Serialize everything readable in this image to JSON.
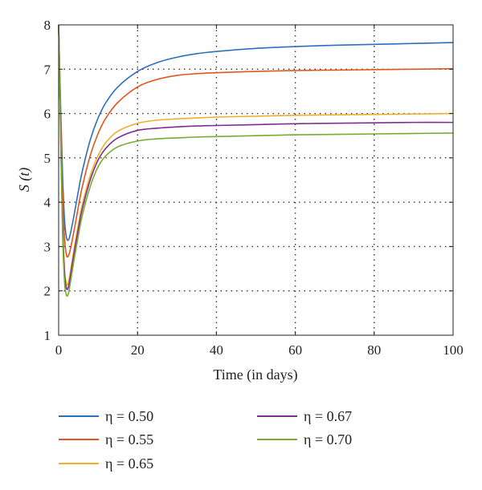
{
  "chart_data": {
    "type": "line",
    "xlabel": "Time (in days)",
    "ylabel": "S (t)",
    "xlim": [
      0,
      100
    ],
    "ylim": [
      1,
      8
    ],
    "xticks": [
      0,
      20,
      40,
      60,
      80,
      100
    ],
    "yticks": [
      1,
      2,
      3,
      4,
      5,
      6,
      7,
      8
    ],
    "grid": true,
    "grid_style": "dotted",
    "legend_position": "bottom",
    "series": [
      {
        "name": "η = 0.50",
        "color": "#2b6fbf",
        "x": [
          0,
          0.5,
          1,
          1.5,
          2,
          2.5,
          3,
          4,
          5,
          6,
          8,
          10,
          12,
          15,
          20,
          25,
          30,
          35,
          40,
          50,
          60,
          70,
          80,
          90,
          100
        ],
        "y": [
          8,
          6.2,
          4.6,
          3.6,
          3.2,
          3.15,
          3.3,
          3.75,
          4.25,
          4.7,
          5.4,
          5.9,
          6.25,
          6.6,
          6.95,
          7.15,
          7.27,
          7.35,
          7.4,
          7.47,
          7.51,
          7.54,
          7.56,
          7.58,
          7.6
        ]
      },
      {
        "name": "η = 0.55",
        "color": "#e0561e",
        "x": [
          0,
          0.5,
          1,
          1.5,
          2,
          2.5,
          3,
          4,
          5,
          6,
          8,
          10,
          12,
          15,
          20,
          25,
          30,
          35,
          40,
          50,
          60,
          70,
          80,
          90,
          100
        ],
        "y": [
          8,
          6.0,
          4.2,
          3.2,
          2.8,
          2.8,
          2.95,
          3.4,
          3.9,
          4.35,
          5.05,
          5.55,
          5.9,
          6.25,
          6.6,
          6.77,
          6.86,
          6.9,
          6.92,
          6.95,
          6.97,
          6.98,
          6.99,
          7.0,
          7.01
        ]
      },
      {
        "name": "η = 0.65",
        "color": "#eeb02a",
        "x": [
          0,
          0.5,
          1,
          1.5,
          2,
          2.5,
          3,
          4,
          5,
          6,
          8,
          10,
          12,
          15,
          20,
          25,
          30,
          35,
          40,
          50,
          60,
          70,
          80,
          90,
          100
        ],
        "y": [
          8,
          5.7,
          3.6,
          2.5,
          2.15,
          2.2,
          2.45,
          3.0,
          3.5,
          3.95,
          4.6,
          5.05,
          5.35,
          5.6,
          5.78,
          5.85,
          5.88,
          5.9,
          5.92,
          5.94,
          5.96,
          5.97,
          5.98,
          5.99,
          6.0
        ]
      },
      {
        "name": "η = 0.67",
        "color": "#7e2f8e",
        "x": [
          0,
          0.5,
          1,
          1.5,
          2,
          2.5,
          3,
          4,
          5,
          6,
          8,
          10,
          12,
          15,
          20,
          25,
          30,
          35,
          40,
          50,
          60,
          70,
          80,
          90,
          100
        ],
        "y": [
          8,
          5.6,
          3.5,
          2.4,
          2.05,
          2.1,
          2.35,
          2.9,
          3.4,
          3.85,
          4.5,
          4.95,
          5.22,
          5.45,
          5.62,
          5.67,
          5.7,
          5.72,
          5.73,
          5.75,
          5.77,
          5.78,
          5.79,
          5.8,
          5.8
        ]
      },
      {
        "name": "η = 0.70",
        "color": "#77ac30",
        "x": [
          0,
          0.5,
          1,
          1.5,
          2,
          2.5,
          3,
          4,
          5,
          6,
          8,
          10,
          12,
          15,
          20,
          25,
          30,
          35,
          40,
          50,
          60,
          70,
          80,
          90,
          100
        ],
        "y": [
          8,
          5.5,
          3.3,
          2.2,
          1.9,
          1.95,
          2.2,
          2.75,
          3.25,
          3.7,
          4.35,
          4.8,
          5.05,
          5.25,
          5.38,
          5.43,
          5.45,
          5.47,
          5.48,
          5.5,
          5.52,
          5.53,
          5.54,
          5.55,
          5.56
        ]
      }
    ]
  }
}
